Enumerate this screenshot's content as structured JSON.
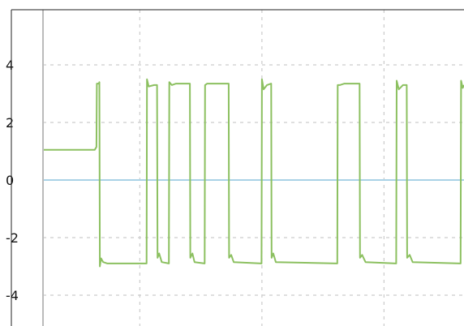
{
  "chart_data": {
    "type": "line",
    "title": "",
    "xlabel": "",
    "ylabel": "",
    "xlim": [
      0,
      100
    ],
    "ylim": [
      -5,
      6
    ],
    "y_ticks": [
      {
        "value": 4,
        "label": "4"
      },
      {
        "value": 2,
        "label": "2"
      },
      {
        "value": 0,
        "label": "0"
      },
      {
        "value": -2,
        "label": "-2"
      },
      {
        "value": -4,
        "label": "-4"
      }
    ],
    "x_gridlines": [
      23,
      52,
      81
    ],
    "grid": true,
    "legend": "none",
    "colors": {
      "signal": "#8cc060",
      "zero_line": "#a9d2e6",
      "grid": "#cccccc",
      "axis": "#bbbbbb",
      "frame": "#222222"
    },
    "series": [
      {
        "role": "zero-line",
        "points": [
          [
            0,
            0
          ],
          [
            100,
            0
          ]
        ]
      },
      {
        "role": "signal",
        "points": [
          [
            0,
            1.05
          ],
          [
            12.3,
            1.05
          ],
          [
            12.7,
            1.15
          ],
          [
            12.8,
            3.35
          ],
          [
            13.3,
            3.35
          ],
          [
            13.4,
            3.4
          ],
          [
            13.5,
            -3.0
          ],
          [
            13.8,
            -2.72
          ],
          [
            14.3,
            -2.85
          ],
          [
            15.3,
            -2.9
          ],
          [
            24.6,
            -2.9
          ],
          [
            24.7,
            3.5
          ],
          [
            25.1,
            3.25
          ],
          [
            26.4,
            3.3
          ],
          [
            27.1,
            3.3
          ],
          [
            27.2,
            -2.7
          ],
          [
            27.6,
            -2.55
          ],
          [
            28.2,
            -2.85
          ],
          [
            29.9,
            -2.9
          ],
          [
            30.0,
            3.4
          ],
          [
            30.6,
            3.3
          ],
          [
            31.6,
            3.35
          ],
          [
            34.9,
            3.35
          ],
          [
            35.0,
            -2.7
          ],
          [
            35.5,
            -2.55
          ],
          [
            36.0,
            -2.85
          ],
          [
            38.4,
            -2.9
          ],
          [
            38.5,
            3.3
          ],
          [
            39.0,
            3.35
          ],
          [
            40.1,
            3.35
          ],
          [
            44.1,
            3.35
          ],
          [
            44.2,
            -2.7
          ],
          [
            44.7,
            -2.6
          ],
          [
            45.3,
            -2.85
          ],
          [
            51.9,
            -2.9
          ],
          [
            52.0,
            3.5
          ],
          [
            52.4,
            3.15
          ],
          [
            53.2,
            3.3
          ],
          [
            54.2,
            3.35
          ],
          [
            54.3,
            -2.7
          ],
          [
            54.7,
            -2.55
          ],
          [
            55.3,
            -2.85
          ],
          [
            69.9,
            -2.9
          ],
          [
            70.0,
            3.3
          ],
          [
            70.5,
            3.3
          ],
          [
            71.6,
            3.35
          ],
          [
            75.2,
            3.35
          ],
          [
            75.3,
            -2.7
          ],
          [
            75.8,
            -2.6
          ],
          [
            76.6,
            -2.85
          ],
          [
            83.9,
            -2.9
          ],
          [
            84.0,
            3.45
          ],
          [
            84.5,
            3.15
          ],
          [
            85.5,
            3.3
          ],
          [
            86.4,
            3.3
          ],
          [
            86.5,
            -2.7
          ],
          [
            87.1,
            -2.6
          ],
          [
            87.8,
            -2.85
          ],
          [
            99.2,
            -2.9
          ],
          [
            99.3,
            3.45
          ],
          [
            99.7,
            3.2
          ],
          [
            100,
            3.3
          ]
        ]
      }
    ]
  }
}
